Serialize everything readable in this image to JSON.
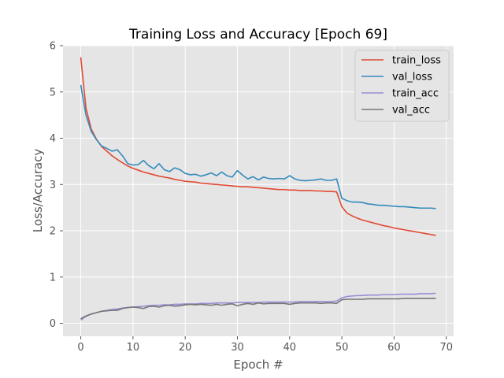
{
  "chart_data": {
    "type": "line",
    "title": "Training Loss and Accuracy [Epoch 69]",
    "xlabel": "Epoch #",
    "ylabel": "Loss/Accuracy",
    "xlim": [
      -3.4,
      71.4
    ],
    "ylim": [
      -0.28,
      6.0
    ],
    "xticks": [
      0,
      10,
      20,
      30,
      40,
      50,
      60,
      70
    ],
    "yticks": [
      0,
      1,
      2,
      3,
      4,
      5,
      6
    ],
    "grid": true,
    "legend_position": "top-right",
    "series": [
      {
        "name": "train_loss",
        "color": "#e24a33",
        "values": [
          5.75,
          4.65,
          4.2,
          3.98,
          3.82,
          3.72,
          3.62,
          3.54,
          3.47,
          3.4,
          3.35,
          3.31,
          3.27,
          3.24,
          3.21,
          3.18,
          3.16,
          3.14,
          3.11,
          3.09,
          3.07,
          3.06,
          3.05,
          3.03,
          3.02,
          3.01,
          3.0,
          2.99,
          2.98,
          2.97,
          2.96,
          2.95,
          2.95,
          2.94,
          2.93,
          2.92,
          2.91,
          2.9,
          2.89,
          2.89,
          2.88,
          2.88,
          2.87,
          2.87,
          2.87,
          2.86,
          2.86,
          2.85,
          2.85,
          2.84,
          2.52,
          2.38,
          2.32,
          2.27,
          2.23,
          2.2,
          2.17,
          2.14,
          2.11,
          2.09,
          2.06,
          2.04,
          2.02,
          2.0,
          1.98,
          1.96,
          1.94,
          1.92,
          1.9
        ]
      },
      {
        "name": "val_loss",
        "color": "#348abd",
        "values": [
          5.15,
          4.5,
          4.15,
          3.97,
          3.83,
          3.78,
          3.72,
          3.75,
          3.62,
          3.45,
          3.42,
          3.43,
          3.52,
          3.41,
          3.34,
          3.45,
          3.32,
          3.28,
          3.36,
          3.32,
          3.24,
          3.21,
          3.22,
          3.18,
          3.21,
          3.25,
          3.19,
          3.27,
          3.19,
          3.16,
          3.3,
          3.2,
          3.12,
          3.17,
          3.1,
          3.16,
          3.13,
          3.12,
          3.13,
          3.12,
          3.19,
          3.12,
          3.09,
          3.08,
          3.09,
          3.1,
          3.12,
          3.09,
          3.09,
          3.12,
          2.7,
          2.65,
          2.62,
          2.62,
          2.61,
          2.58,
          2.57,
          2.55,
          2.55,
          2.54,
          2.53,
          2.52,
          2.52,
          2.51,
          2.5,
          2.49,
          2.49,
          2.49,
          2.48
        ]
      },
      {
        "name": "train_acc",
        "color": "#988ed5",
        "values": [
          0.07,
          0.15,
          0.2,
          0.23,
          0.26,
          0.28,
          0.3,
          0.31,
          0.33,
          0.34,
          0.35,
          0.36,
          0.37,
          0.38,
          0.39,
          0.39,
          0.4,
          0.4,
          0.41,
          0.41,
          0.42,
          0.42,
          0.42,
          0.43,
          0.43,
          0.43,
          0.44,
          0.44,
          0.44,
          0.44,
          0.45,
          0.45,
          0.45,
          0.45,
          0.45,
          0.46,
          0.46,
          0.46,
          0.46,
          0.46,
          0.46,
          0.46,
          0.47,
          0.47,
          0.47,
          0.47,
          0.47,
          0.47,
          0.47,
          0.48,
          0.55,
          0.58,
          0.59,
          0.6,
          0.6,
          0.61,
          0.61,
          0.61,
          0.62,
          0.62,
          0.62,
          0.63,
          0.63,
          0.63,
          0.63,
          0.64,
          0.64,
          0.64,
          0.65
        ]
      },
      {
        "name": "val_acc",
        "color": "#777777",
        "values": [
          0.1,
          0.16,
          0.2,
          0.23,
          0.26,
          0.27,
          0.28,
          0.28,
          0.32,
          0.34,
          0.35,
          0.34,
          0.32,
          0.36,
          0.37,
          0.35,
          0.38,
          0.39,
          0.37,
          0.38,
          0.4,
          0.41,
          0.4,
          0.41,
          0.4,
          0.39,
          0.41,
          0.39,
          0.41,
          0.42,
          0.38,
          0.41,
          0.43,
          0.41,
          0.44,
          0.42,
          0.43,
          0.43,
          0.43,
          0.43,
          0.41,
          0.43,
          0.44,
          0.44,
          0.44,
          0.44,
          0.43,
          0.44,
          0.44,
          0.43,
          0.51,
          0.52,
          0.52,
          0.52,
          0.52,
          0.53,
          0.53,
          0.53,
          0.53,
          0.53,
          0.53,
          0.53,
          0.54,
          0.54,
          0.54,
          0.54,
          0.54,
          0.54,
          0.54
        ]
      }
    ]
  }
}
